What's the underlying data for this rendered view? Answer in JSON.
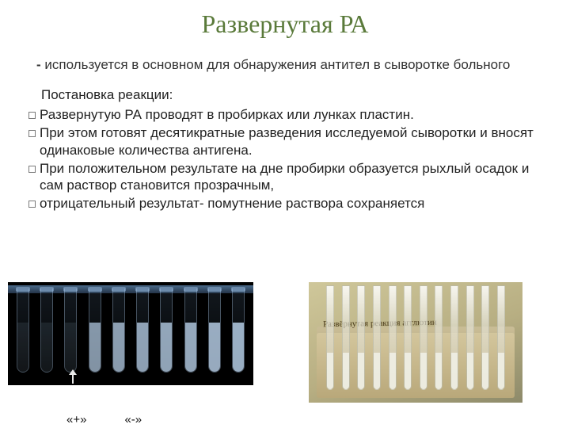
{
  "title": "Развернутая РА",
  "intro_dash": "-",
  "intro_text": " используется  в основном для обнаружения антител в сыворотке больного",
  "subhead": "Постановка реакции:",
  "bullets": [
    "Развернутую РА проводят в пробирках или лунках пластин.",
    "При этом готовят десятикратные разведения исследуемой сыворотки и вносят одинаковые количества антигена.",
    "При положительном результате на дне пробирки образуется рыхлый осадок и сам раствор становится прозрачным,",
    "отрицательный результат- помутнение раствора сохраняется"
  ],
  "left_photo": {
    "background": "#000000",
    "tube_count": 10,
    "tube_opacities": [
      0.18,
      0.2,
      0.22,
      0.55,
      0.6,
      0.62,
      0.64,
      0.66,
      0.68,
      0.7
    ],
    "liquid_color_clear": "rgba(170,200,230,0.25)",
    "liquid_color_cloudy": "rgba(190,215,240,0.85)",
    "arrow_tube_index": 2
  },
  "labels": {
    "pos": "«+»",
    "neg": "«-»"
  },
  "right_photo": {
    "tube_count": 12,
    "handwritten": "Развёрнутая реакция агглютин"
  },
  "colors": {
    "title": "#5a7a3a",
    "text": "#333333",
    "page_bg": "#ffffff"
  },
  "fonts": {
    "title_pt": 32,
    "body_pt": 17
  }
}
